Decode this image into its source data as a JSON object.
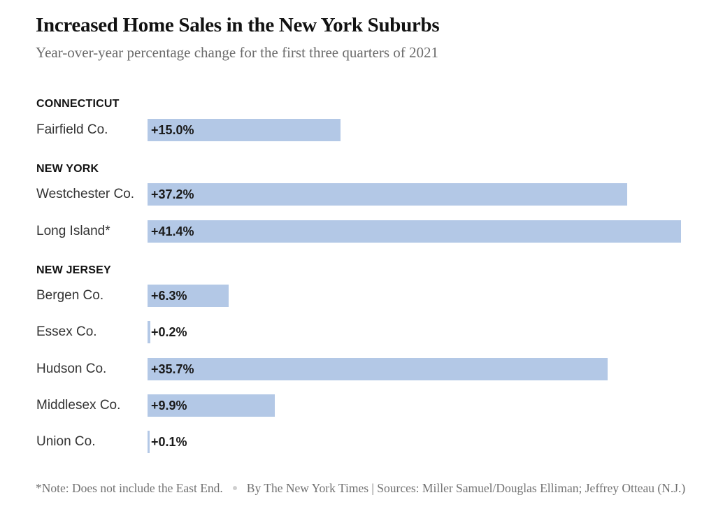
{
  "chart_data": {
    "type": "bar",
    "orientation": "horizontal",
    "title": "Increased Home Sales in the New York Suburbs",
    "subtitle": "Year-over-year percentage change for the first three quarters of 2021",
    "xlim": [
      0,
      41.4
    ],
    "colors": {
      "bar": "#b3c8e6",
      "text": "#121212",
      "muted": "#727272"
    },
    "groups": [
      {
        "name": "CONNECTICUT",
        "rows": [
          {
            "category": "Fairfield Co.",
            "value": 15.0,
            "label": "+15.0%"
          }
        ]
      },
      {
        "name": "NEW YORK",
        "rows": [
          {
            "category": "Westchester Co.",
            "value": 37.2,
            "label": "+37.2%"
          },
          {
            "category": "Long Island*",
            "value": 41.4,
            "label": "+41.4%"
          }
        ]
      },
      {
        "name": "NEW JERSEY",
        "rows": [
          {
            "category": "Bergen Co.",
            "value": 6.3,
            "label": "+6.3%"
          },
          {
            "category": "Essex Co.",
            "value": 0.2,
            "label": "+0.2%"
          },
          {
            "category": "Hudson Co.",
            "value": 35.7,
            "label": "+35.7%"
          },
          {
            "category": "Middlesex Co.",
            "value": 9.9,
            "label": "+9.9%"
          },
          {
            "category": "Union Co.",
            "value": 0.1,
            "label": "+0.1%"
          }
        ]
      }
    ],
    "note": "*Note: Does not include the East End.",
    "credit": "By The New York Times | Sources: Miller Samuel/Douglas Elliman; Jeffrey Otteau (N.J.)"
  }
}
